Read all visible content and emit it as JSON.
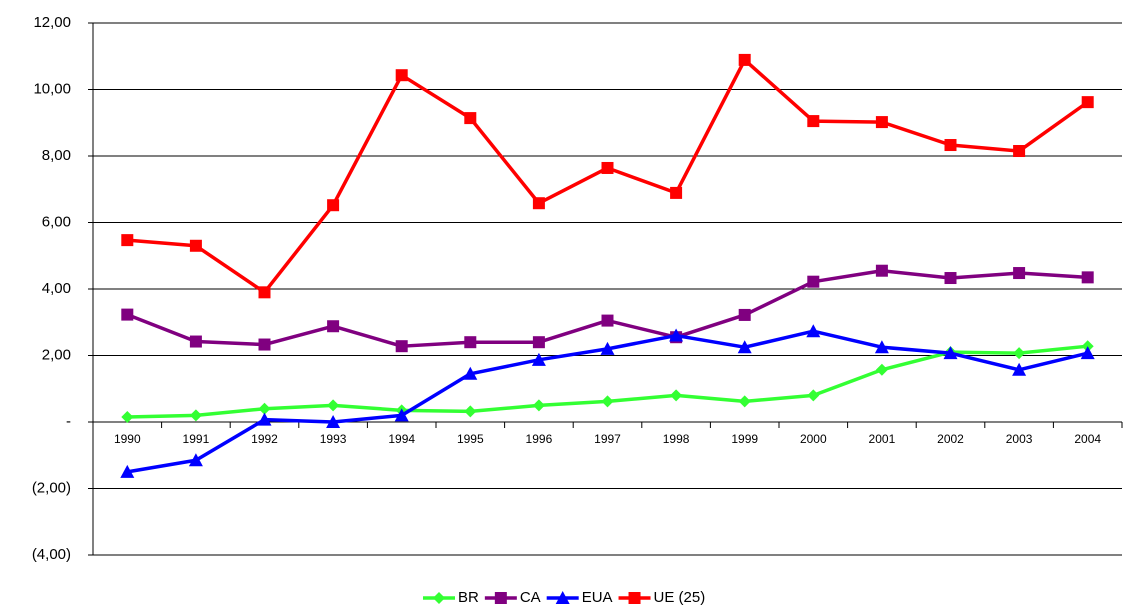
{
  "chart_data": {
    "type": "line",
    "categories": [
      "1990",
      "1991",
      "1992",
      "1993",
      "1994",
      "1995",
      "1996",
      "1997",
      "1998",
      "1999",
      "2000",
      "2001",
      "2002",
      "2003",
      "2004"
    ],
    "series": [
      {
        "name": "BR",
        "color": "#33ff33",
        "marker": "diamond",
        "values": [
          0.15,
          0.2,
          0.4,
          0.5,
          0.35,
          0.32,
          0.5,
          0.62,
          0.8,
          0.62,
          0.8,
          1.57,
          2.1,
          2.07,
          2.28
        ]
      },
      {
        "name": "CA",
        "color": "#800080",
        "marker": "square",
        "values": [
          3.23,
          2.42,
          2.33,
          2.88,
          2.28,
          2.4,
          2.4,
          3.05,
          2.55,
          3.22,
          4.22,
          4.55,
          4.33,
          4.48,
          4.35
        ]
      },
      {
        "name": "EUA",
        "color": "#0000ff",
        "marker": "triangle",
        "values": [
          -1.5,
          -1.15,
          0.07,
          0,
          0.2,
          1.45,
          1.87,
          2.2,
          2.6,
          2.25,
          2.73,
          2.25,
          2.07,
          1.57,
          2.07
        ]
      },
      {
        "name": "UE (25)",
        "color": "#ff0000",
        "marker": "square",
        "values": [
          5.47,
          5.3,
          3.9,
          6.52,
          10.43,
          9.14,
          6.58,
          7.64,
          6.89,
          10.89,
          9.05,
          9.02,
          8.33,
          8.15,
          9.62
        ]
      }
    ],
    "ylim": [
      -4,
      12
    ],
    "yticks": [
      {
        "value": -4,
        "label": "(4,00)"
      },
      {
        "value": -2,
        "label": "(2,00)"
      },
      {
        "value": 0,
        "label": "-"
      },
      {
        "value": 2,
        "label": "2,00"
      },
      {
        "value": 4,
        "label": "4,00"
      },
      {
        "value": 6,
        "label": "6,00"
      },
      {
        "value": 8,
        "label": "8,00"
      },
      {
        "value": 10,
        "label": "10,00"
      },
      {
        "value": 12,
        "label": "12,00"
      }
    ],
    "grid": true,
    "legend": "bottom"
  }
}
